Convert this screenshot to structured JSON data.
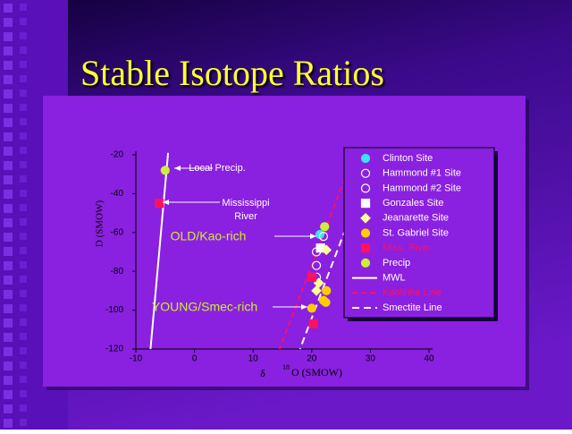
{
  "chart_data": {
    "type": "scatter",
    "title": "Stable Isotope Ratios",
    "y_label": "D (SMOW)",
    "x_label": {
      "symbol": "δ",
      "sup": "18",
      "text": "O (SMOW)"
    },
    "xlim": [
      -10,
      40
    ],
    "xticks": [
      -10,
      0,
      10,
      20,
      30,
      40
    ],
    "ylim": [
      -120,
      -20
    ],
    "yticks": [
      -20,
      -40,
      -60,
      -80,
      -100,
      -120
    ],
    "series": [
      {
        "name": "Clinton Site",
        "marker": "circle",
        "color": "#40e0f0",
        "filled": true,
        "x": [
          21.4
        ],
        "values": [
          -61
        ]
      },
      {
        "name": "Hammond #1 Site",
        "marker": "circle",
        "color": "#ffffff",
        "filled": false,
        "x": [
          22
        ],
        "values": [
          -62
        ]
      },
      {
        "name": "Hammond #2 Site",
        "marker": "circle",
        "color": "#ffffff",
        "filled": false,
        "x": [
          20.8,
          20.8,
          20.8
        ],
        "values": [
          -70,
          -77,
          -83
        ]
      },
      {
        "name": "Gonzales Site",
        "marker": "square",
        "color": "#ffffff",
        "filled": true,
        "x": [
          21.5
        ],
        "values": [
          -68
        ]
      },
      {
        "name": "Jeanarette Site",
        "marker": "diamond",
        "color": "#ffff99",
        "filled": true,
        "x": [
          22.5,
          21.2,
          20.8
        ],
        "values": [
          -69,
          -86,
          -90
        ]
      },
      {
        "name": "St. Gabriel Site",
        "marker": "circle",
        "color": "#ffcc00",
        "filled": true,
        "x": [
          22.5,
          22,
          22.4,
          20
        ],
        "values": [
          -90,
          -95,
          -96,
          -99
        ]
      },
      {
        "name": "Miss. River",
        "marker": "square",
        "color": "#ff1060",
        "filled": true,
        "x": [
          -6,
          20,
          20.3
        ],
        "values": [
          -45,
          -83,
          -107
        ]
      },
      {
        "name": "Precip",
        "marker": "circle",
        "color": "#ccee33",
        "filled": true,
        "x": [
          -5,
          22.2
        ],
        "values": [
          -28,
          -57
        ]
      }
    ],
    "lines": [
      {
        "name": "MWL",
        "color": "#ffffff",
        "dash": "none",
        "x": [
          -4.5,
          -7.5
        ],
        "values": [
          -19,
          -120
        ]
      },
      {
        "name": "Kaolinite Line",
        "color": "#ff1060",
        "dash": "6,4",
        "x": [
          26.2,
          14.5
        ],
        "values": [
          -28,
          -120
        ]
      },
      {
        "name": "Smectite Line",
        "color": "#ffffff",
        "dash": "8,5",
        "x": [
          29.3,
          18
        ],
        "values": [
          -30,
          -120
        ]
      }
    ],
    "annotations": [
      "Local Precip.",
      "Mississippi",
      "River",
      "OLD/Kao-rich",
      "YOUNG/Smec-rich"
    ]
  }
}
